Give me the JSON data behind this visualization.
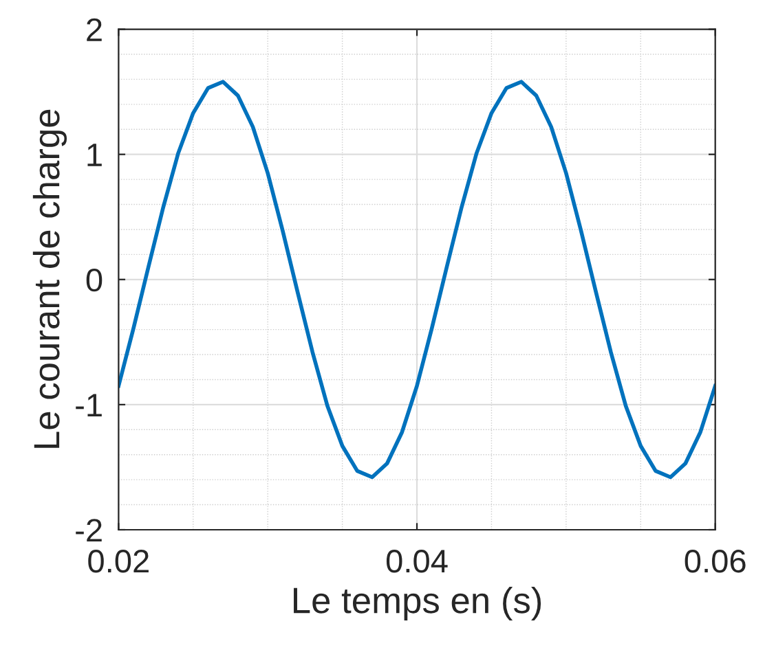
{
  "chart_data": {
    "type": "line",
    "xlabel": "Le temps en (s)",
    "ylabel": "Le courant de charge",
    "x": [
      0.02,
      0.021,
      0.022,
      0.023,
      0.024,
      0.025,
      0.026,
      0.027,
      0.028,
      0.029,
      0.03,
      0.031,
      0.032,
      0.033,
      0.034,
      0.035,
      0.036,
      0.037,
      0.038,
      0.039,
      0.04,
      0.041,
      0.042,
      0.043,
      0.044,
      0.045,
      0.046,
      0.047,
      0.048,
      0.049,
      0.05,
      0.051,
      0.052,
      0.053,
      0.054,
      0.055,
      0.056,
      0.057,
      0.058,
      0.059,
      0.06
    ],
    "series": [
      {
        "color": "#0072bd",
        "values": [
          -0.85,
          -0.39,
          0.1,
          0.58,
          1.01,
          1.33,
          1.53,
          1.58,
          1.47,
          1.22,
          0.85,
          0.39,
          -0.1,
          -0.58,
          -1.01,
          -1.33,
          -1.53,
          -1.58,
          -1.47,
          -1.22,
          -0.85,
          -0.39,
          0.1,
          0.58,
          1.01,
          1.33,
          1.53,
          1.58,
          1.47,
          1.22,
          0.85,
          0.39,
          -0.1,
          -0.58,
          -1.01,
          -1.33,
          -1.53,
          -1.58,
          -1.47,
          -1.22,
          -0.85
        ]
      }
    ],
    "xlim": [
      0.02,
      0.06
    ],
    "xticks": [
      0.02,
      0.04,
      0.06
    ],
    "ylim": [
      -2,
      2
    ],
    "yticks": [
      -2,
      -1,
      0,
      1,
      2
    ],
    "grid": true,
    "line_style": "solid",
    "marker": "none",
    "legend": false
  }
}
